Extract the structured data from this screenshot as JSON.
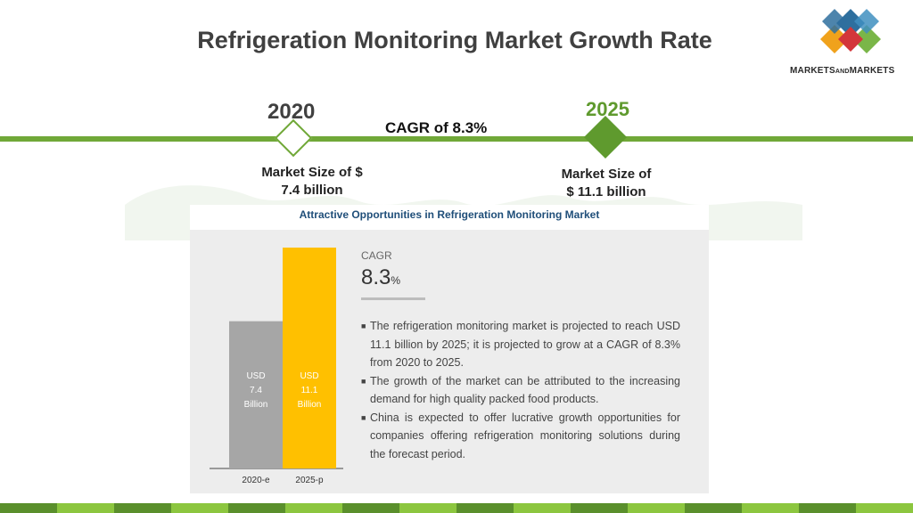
{
  "title": "Refrigeration Monitoring Market Growth Rate",
  "logo": {
    "text_left": "MARKETS",
    "text_and": "AND",
    "text_right": "MARKETS",
    "colors": [
      "#2e6f9e",
      "#d3363a",
      "#f0a21c",
      "#7ab648"
    ]
  },
  "timeline": {
    "start_year": "2020",
    "end_year": "2025",
    "cagr_label": "CAGR of 8.3%",
    "start_size_line1": "Market Size of $",
    "start_size_line2": "7.4 billion",
    "end_size_line1": "Market Size of",
    "end_size_line2": "$ 11.1 billion",
    "line_color": "#70a838"
  },
  "infographic": {
    "title": "Attractive Opportunities in Refrigeration Monitoring Market",
    "cagr_heading": "CAGR",
    "cagr_number": "8.3",
    "cagr_percent": "%",
    "bullets": [
      "The refrigeration monitoring market is projected to reach USD 11.1 billion by 2025; it is projected to grow at a CAGR of 8.3% from 2020 to 2025.",
      "The growth of the market can be attributed to the increasing demand for high quality packed food products.",
      "China is expected to offer lucrative growth opportunities for companies offering refrigeration monitoring solutions during the forecast period."
    ]
  },
  "chart_data": {
    "type": "bar",
    "categories": [
      "2020-e",
      "2025-p"
    ],
    "values": [
      7.4,
      11.1
    ],
    "unit": "USD Billion",
    "bar_labels": [
      [
        "USD",
        "7.4",
        "Billion"
      ],
      [
        "USD",
        "11.1",
        "Billion"
      ]
    ],
    "colors": [
      "#a6a6a6",
      "#ffc000"
    ],
    "ylim": [
      0,
      11.1
    ],
    "title": "",
    "xlabel": "",
    "ylabel": ""
  },
  "footer_colors": [
    "#5a8f2c",
    "#8cc63f",
    "#5a8f2c",
    "#8cc63f",
    "#5a8f2c",
    "#8cc63f",
    "#5a8f2c",
    "#8cc63f",
    "#5a8f2c",
    "#8cc63f",
    "#5a8f2c",
    "#8cc63f",
    "#5a8f2c",
    "#8cc63f",
    "#5a8f2c",
    "#8cc63f"
  ]
}
